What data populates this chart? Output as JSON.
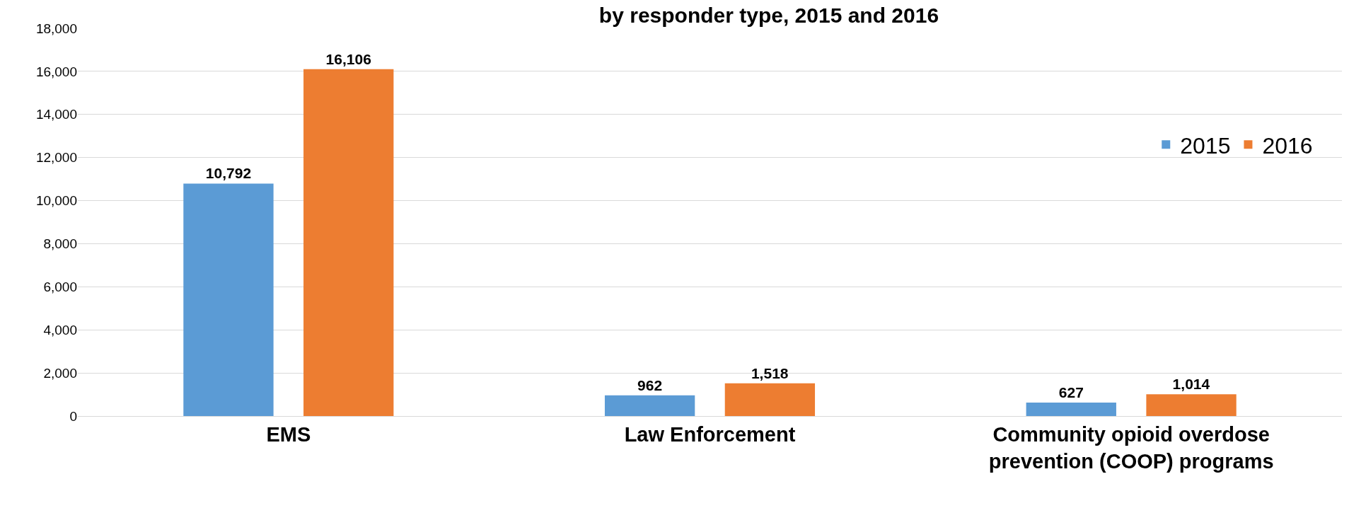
{
  "chart_data": {
    "type": "bar",
    "title": "by responder type, 2015 and 2016",
    "categories": [
      "EMS",
      "Law Enforcement",
      "Community opioid overdose prevention (COOP) programs"
    ],
    "series": [
      {
        "name": "2015",
        "color": "#5b9bd5",
        "values": [
          10792,
          962,
          627
        ],
        "value_labels": [
          "10,792",
          "962",
          "627"
        ]
      },
      {
        "name": "2016",
        "color": "#ed7d31",
        "values": [
          16106,
          1518,
          1014
        ],
        "value_labels": [
          "16,106",
          "1,518",
          "1,014"
        ]
      }
    ],
    "ylim": [
      0,
      18000
    ],
    "yticks": [
      {
        "value": 0,
        "label": "0"
      },
      {
        "value": 2000,
        "label": "2,000"
      },
      {
        "value": 4000,
        "label": "4,000"
      },
      {
        "value": 6000,
        "label": "6,000"
      },
      {
        "value": 8000,
        "label": "8,000"
      },
      {
        "value": 10000,
        "label": "10,000"
      },
      {
        "value": 12000,
        "label": "12,000"
      },
      {
        "value": 14000,
        "label": "14,000"
      },
      {
        "value": 16000,
        "label": "16,000"
      },
      {
        "value": 18000,
        "label": "18,000"
      }
    ],
    "grid": "y",
    "legend": "top right"
  }
}
